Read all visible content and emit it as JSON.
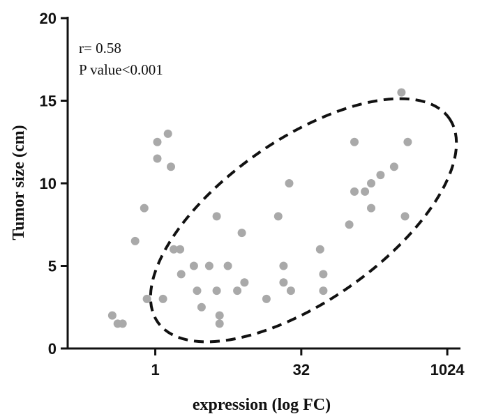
{
  "chart_data": {
    "type": "scatter",
    "xlabel": "expression (log FC)",
    "ylabel": "Tumor size (cm)",
    "x_scale": "log2",
    "xlim": [
      0.125,
      1400
    ],
    "ylim": [
      0,
      20
    ],
    "x_ticks": [
      1,
      32,
      1024
    ],
    "x_tick_labels": [
      "1",
      "32",
      "1024"
    ],
    "y_ticks": [
      0,
      5,
      10,
      15,
      20
    ],
    "y_tick_labels": [
      "0",
      "5",
      "10",
      "15",
      "20"
    ],
    "annotations": [
      "r= 0.58",
      "P value<0.001"
    ],
    "point_color": "#a9a9a9",
    "ellipse": {
      "style": "dashed",
      "color": "#111111"
    },
    "points": [
      {
        "x": 0.36,
        "y": 2.0
      },
      {
        "x": 0.41,
        "y": 1.5
      },
      {
        "x": 0.46,
        "y": 1.5
      },
      {
        "x": 0.62,
        "y": 6.5
      },
      {
        "x": 0.77,
        "y": 8.5
      },
      {
        "x": 0.82,
        "y": 3.0
      },
      {
        "x": 1.05,
        "y": 12.5
      },
      {
        "x": 1.05,
        "y": 11.5
      },
      {
        "x": 1.2,
        "y": 3.0
      },
      {
        "x": 1.35,
        "y": 13.0
      },
      {
        "x": 1.45,
        "y": 11.0
      },
      {
        "x": 1.55,
        "y": 6.0
      },
      {
        "x": 1.8,
        "y": 6.0
      },
      {
        "x": 1.85,
        "y": 4.5
      },
      {
        "x": 2.5,
        "y": 5.0
      },
      {
        "x": 2.7,
        "y": 3.5
      },
      {
        "x": 3.0,
        "y": 2.5
      },
      {
        "x": 3.6,
        "y": 5.0
      },
      {
        "x": 4.3,
        "y": 8.0
      },
      {
        "x": 4.3,
        "y": 3.5
      },
      {
        "x": 4.6,
        "y": 2.0
      },
      {
        "x": 4.6,
        "y": 1.5
      },
      {
        "x": 5.6,
        "y": 5.0
      },
      {
        "x": 7.0,
        "y": 3.5
      },
      {
        "x": 7.8,
        "y": 7.0
      },
      {
        "x": 8.3,
        "y": 4.0
      },
      {
        "x": 14.0,
        "y": 3.0
      },
      {
        "x": 18.5,
        "y": 8.0
      },
      {
        "x": 21.0,
        "y": 5.0
      },
      {
        "x": 21.0,
        "y": 4.0
      },
      {
        "x": 24.0,
        "y": 10.0
      },
      {
        "x": 25.0,
        "y": 3.5
      },
      {
        "x": 50.0,
        "y": 6.0
      },
      {
        "x": 54.0,
        "y": 4.5
      },
      {
        "x": 54.0,
        "y": 3.5
      },
      {
        "x": 100.0,
        "y": 7.5
      },
      {
        "x": 113.0,
        "y": 12.5
      },
      {
        "x": 113.0,
        "y": 9.5
      },
      {
        "x": 145.0,
        "y": 9.5
      },
      {
        "x": 168.0,
        "y": 10.0
      },
      {
        "x": 168.0,
        "y": 8.5
      },
      {
        "x": 210.0,
        "y": 10.5
      },
      {
        "x": 290.0,
        "y": 11.0
      },
      {
        "x": 345.0,
        "y": 15.5
      },
      {
        "x": 375.0,
        "y": 8.0
      },
      {
        "x": 400.0,
        "y": 12.5
      }
    ]
  }
}
